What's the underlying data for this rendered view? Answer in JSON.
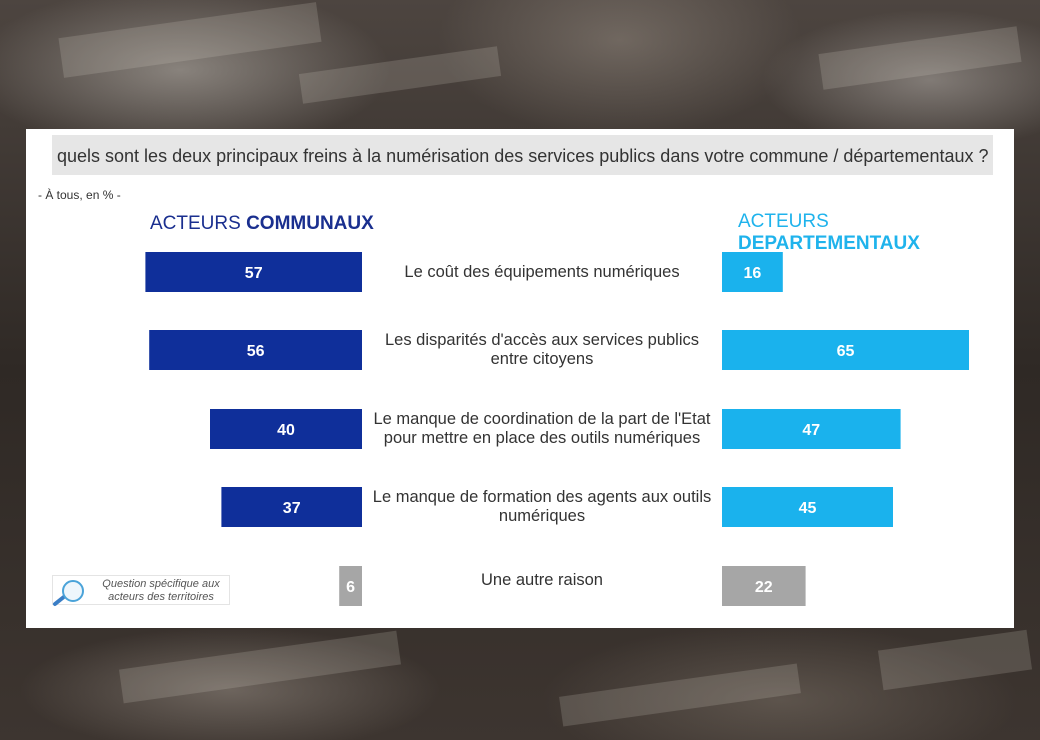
{
  "question": "quels sont les deux principaux freins à la numérisation des services publics dans votre commune / départementaux  ?",
  "base_note": "- À tous, en % -",
  "left_heading": {
    "prefix": "ACTEURS ",
    "bold": "COMMUNAUX"
  },
  "right_heading": {
    "prefix": "ACTEURS ",
    "bold": "DEPARTEMENTAUX"
  },
  "footnote": "Question spécifique aux acteurs des territoires",
  "colors": {
    "communaux": "#0f2f9a",
    "departementaux": "#1ab2ed",
    "other": "#a6a6a6"
  },
  "chart_data": {
    "type": "bar",
    "categories": [
      "Le coût des équipements numériques",
      "Les disparités d'accès aux services publics entre citoyens",
      "Le manque de coordination de la part de l'Etat pour mettre en place des outils numériques",
      "Le manque de formation des agents aux outils numériques",
      "Une autre raison"
    ],
    "series": [
      {
        "name": "ACTEURS COMMUNAUX",
        "values": [
          57,
          56,
          40,
          37,
          6
        ]
      },
      {
        "name": "ACTEURS DEPARTEMENTAUX",
        "values": [
          16,
          65,
          47,
          45,
          22
        ]
      }
    ],
    "units": "%"
  }
}
